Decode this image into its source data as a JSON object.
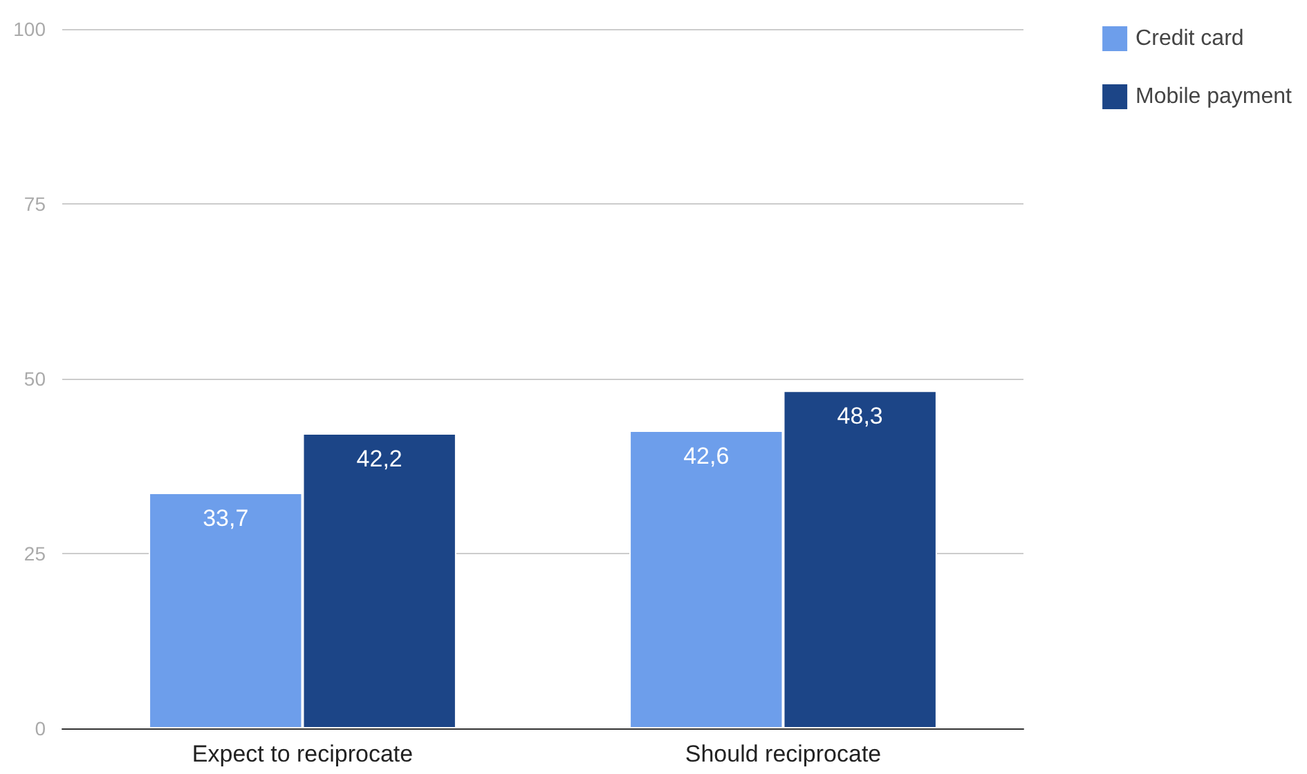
{
  "chart_data": {
    "type": "bar",
    "categories": [
      "Expect to reciprocate",
      "Should reciprocate"
    ],
    "series": [
      {
        "name": "Credit card",
        "color": "#6d9eeb",
        "values": [
          33.7,
          42.6
        ],
        "value_labels": [
          "33,7",
          "42,6"
        ]
      },
      {
        "name": "Mobile payment",
        "color": "#1c4587",
        "values": [
          42.2,
          48.3
        ],
        "value_labels": [
          "42,2",
          "48,3"
        ]
      }
    ],
    "ylim": [
      0,
      100
    ],
    "yticks": [
      0,
      25,
      50,
      75,
      100
    ],
    "grid": "y",
    "legend": "top right"
  }
}
